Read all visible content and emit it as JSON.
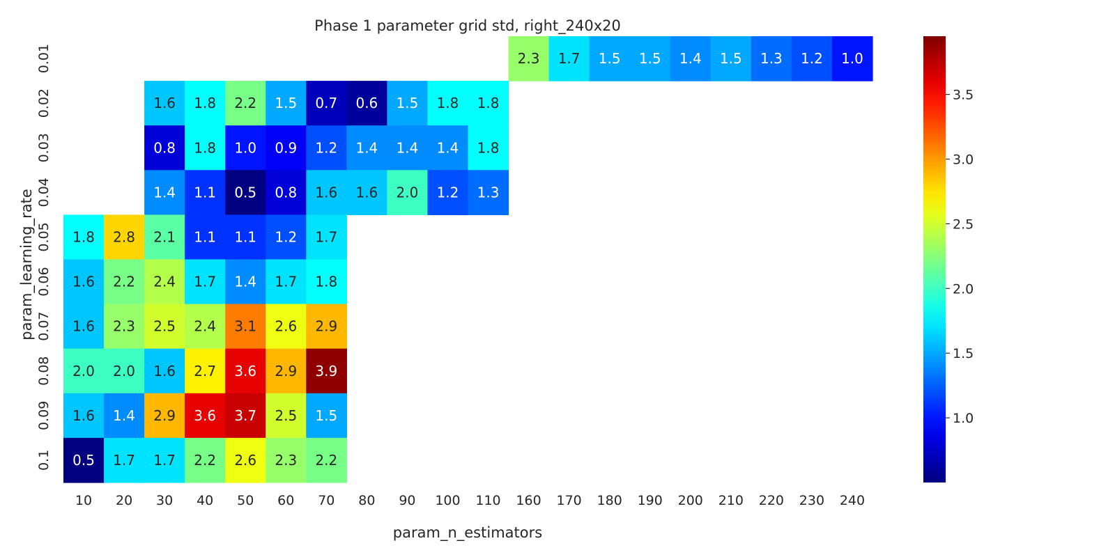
{
  "chart_data": {
    "type": "heatmap",
    "title": "Phase 1 parameter grid std, right_240x20",
    "xlabel": "param_n_estimators",
    "ylabel": "param_learning_rate",
    "x_categories": [
      "10",
      "20",
      "30",
      "40",
      "50",
      "60",
      "70",
      "80",
      "90",
      "100",
      "110",
      "160",
      "170",
      "180",
      "190",
      "200",
      "210",
      "220",
      "230",
      "240"
    ],
    "y_categories": [
      "0.01",
      "0.02",
      "0.03",
      "0.04",
      "0.05",
      "0.06",
      "0.07",
      "0.08",
      "0.09",
      "0.1"
    ],
    "values": [
      [
        null,
        null,
        null,
        null,
        null,
        null,
        null,
        null,
        null,
        null,
        null,
        2.3,
        1.7,
        1.5,
        1.5,
        1.4,
        1.5,
        1.3,
        1.2,
        1.0
      ],
      [
        null,
        null,
        1.6,
        1.8,
        2.2,
        1.5,
        0.7,
        0.6,
        1.5,
        1.8,
        1.8,
        null,
        null,
        null,
        null,
        null,
        null,
        null,
        null,
        null
      ],
      [
        null,
        null,
        0.8,
        1.8,
        1.0,
        0.9,
        1.2,
        1.4,
        1.4,
        1.4,
        1.8,
        null,
        null,
        null,
        null,
        null,
        null,
        null,
        null,
        null
      ],
      [
        null,
        null,
        1.4,
        1.1,
        0.5,
        0.8,
        1.6,
        1.6,
        2.0,
        1.2,
        1.3,
        null,
        null,
        null,
        null,
        null,
        null,
        null,
        null,
        null
      ],
      [
        1.8,
        2.8,
        2.1,
        1.1,
        1.1,
        1.2,
        1.7,
        null,
        null,
        null,
        null,
        null,
        null,
        null,
        null,
        null,
        null,
        null,
        null,
        null
      ],
      [
        1.6,
        2.2,
        2.4,
        1.7,
        1.4,
        1.7,
        1.8,
        null,
        null,
        null,
        null,
        null,
        null,
        null,
        null,
        null,
        null,
        null,
        null,
        null
      ],
      [
        1.6,
        2.3,
        2.5,
        2.4,
        3.1,
        2.6,
        2.9,
        null,
        null,
        null,
        null,
        null,
        null,
        null,
        null,
        null,
        null,
        null,
        null,
        null
      ],
      [
        2.0,
        2.0,
        1.6,
        2.7,
        3.6,
        2.9,
        3.9,
        null,
        null,
        null,
        null,
        null,
        null,
        null,
        null,
        null,
        null,
        null,
        null,
        null
      ],
      [
        1.6,
        1.4,
        2.9,
        3.6,
        3.7,
        2.5,
        1.5,
        null,
        null,
        null,
        null,
        null,
        null,
        null,
        null,
        null,
        null,
        null,
        null,
        null
      ],
      [
        0.5,
        1.7,
        1.7,
        2.2,
        2.6,
        2.3,
        2.2,
        null,
        null,
        null,
        null,
        null,
        null,
        null,
        null,
        null,
        null,
        null,
        null,
        null
      ]
    ],
    "colormap": "jet",
    "vmin": 0.5,
    "vmax": 3.95,
    "colorbar_ticks": [
      "1.0",
      "1.5",
      "2.0",
      "2.5",
      "3.0",
      "3.5"
    ]
  }
}
